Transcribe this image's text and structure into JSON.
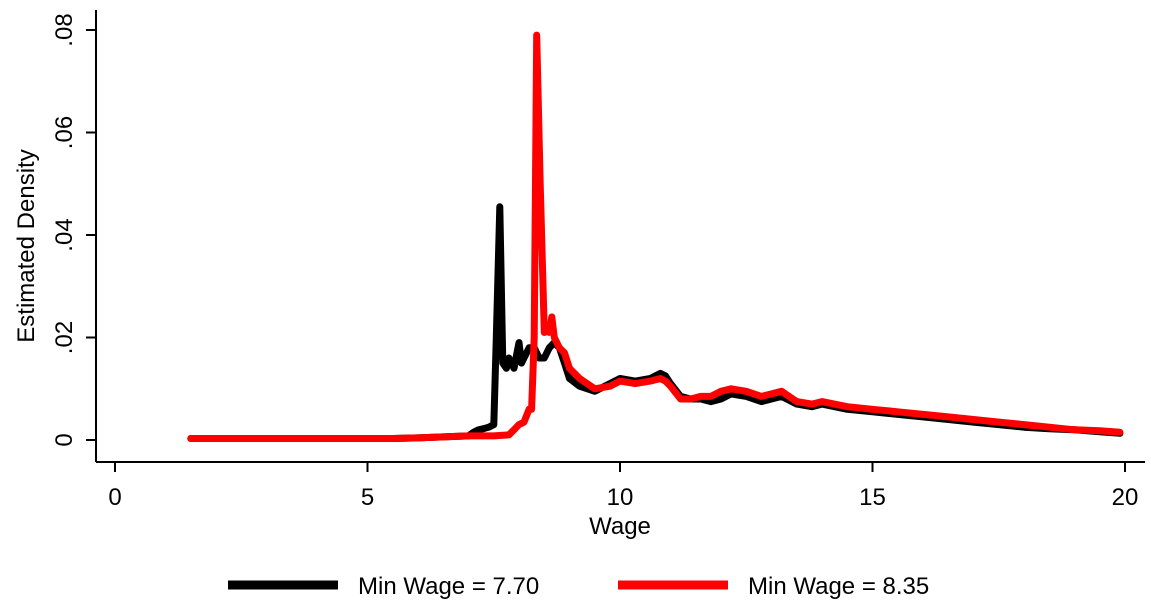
{
  "chart_data": {
    "type": "line",
    "title": "",
    "xlabel": "Wage",
    "ylabel": "Estimated Density",
    "xlim": [
      0,
      20
    ],
    "ylim": [
      0,
      0.08
    ],
    "x_ticks": [
      0,
      5,
      10,
      15,
      20
    ],
    "x_tick_labels": [
      "0",
      "5",
      "10",
      "15",
      "20"
    ],
    "y_ticks": [
      0,
      0.02,
      0.04,
      0.06,
      0.08
    ],
    "y_tick_labels": [
      "0",
      ".02",
      ".04",
      ".06",
      ".08"
    ],
    "grid": false,
    "legend_position": "bottom",
    "series": [
      {
        "name": "Min Wage = 7.70",
        "color": "#000000",
        "x": [
          1.5,
          2,
          3,
          4,
          5,
          5.5,
          6,
          6.5,
          7,
          7.1,
          7.2,
          7.3,
          7.4,
          7.5,
          7.55,
          7.62,
          7.68,
          7.75,
          7.8,
          7.9,
          8.0,
          8.05,
          8.1,
          8.2,
          8.3,
          8.4,
          8.5,
          8.6,
          8.7,
          8.8,
          8.9,
          9.0,
          9.2,
          9.5,
          9.8,
          10.0,
          10.3,
          10.6,
          10.8,
          10.9,
          11.0,
          11.2,
          11.4,
          11.6,
          11.8,
          12.0,
          12.2,
          12.5,
          12.8,
          13.0,
          13.2,
          13.5,
          13.8,
          14.0,
          14.5,
          15.0,
          15.5,
          16.0,
          16.5,
          17.0,
          17.5,
          18.0,
          18.5,
          19.0,
          19.5,
          19.9
        ],
        "y": [
          0.0003,
          0.0003,
          0.0003,
          0.0003,
          0.0003,
          0.0003,
          0.0004,
          0.0006,
          0.0008,
          0.0015,
          0.002,
          0.0022,
          0.0025,
          0.003,
          0.02,
          0.0455,
          0.015,
          0.014,
          0.016,
          0.014,
          0.019,
          0.015,
          0.016,
          0.018,
          0.018,
          0.016,
          0.016,
          0.018,
          0.019,
          0.018,
          0.015,
          0.012,
          0.0105,
          0.0095,
          0.011,
          0.012,
          0.0115,
          0.012,
          0.013,
          0.0125,
          0.011,
          0.0085,
          0.008,
          0.008,
          0.0075,
          0.008,
          0.009,
          0.0085,
          0.0075,
          0.008,
          0.0085,
          0.007,
          0.0065,
          0.007,
          0.006,
          0.0055,
          0.005,
          0.0045,
          0.004,
          0.0035,
          0.003,
          0.0025,
          0.0022,
          0.002,
          0.0016,
          0.0013
        ]
      },
      {
        "name": "Min Wage = 8.35",
        "color": "#ff0000",
        "x": [
          1.5,
          2,
          3,
          4,
          5,
          5.5,
          6,
          6.5,
          7,
          7.5,
          7.8,
          7.9,
          8.0,
          8.1,
          8.2,
          8.25,
          8.3,
          8.35,
          8.42,
          8.5,
          8.55,
          8.6,
          8.65,
          8.7,
          8.8,
          8.9,
          9.0,
          9.2,
          9.5,
          9.8,
          10.0,
          10.3,
          10.6,
          10.8,
          10.9,
          11.0,
          11.2,
          11.4,
          11.6,
          11.8,
          12.0,
          12.2,
          12.5,
          12.8,
          13.0,
          13.2,
          13.5,
          13.8,
          14.0,
          14.5,
          15.0,
          15.5,
          16.0,
          16.5,
          17.0,
          17.5,
          18.0,
          18.5,
          19.0,
          19.5,
          19.9
        ],
        "y": [
          0.0003,
          0.0003,
          0.0003,
          0.0003,
          0.0003,
          0.0003,
          0.0004,
          0.0006,
          0.0008,
          0.0008,
          0.001,
          0.002,
          0.003,
          0.0035,
          0.006,
          0.006,
          0.02,
          0.079,
          0.05,
          0.021,
          0.022,
          0.021,
          0.024,
          0.02,
          0.018,
          0.017,
          0.014,
          0.012,
          0.01,
          0.0105,
          0.0115,
          0.011,
          0.0115,
          0.012,
          0.0115,
          0.0105,
          0.008,
          0.008,
          0.0085,
          0.0085,
          0.0095,
          0.01,
          0.0095,
          0.0085,
          0.009,
          0.0095,
          0.0075,
          0.007,
          0.0075,
          0.0065,
          0.006,
          0.0055,
          0.005,
          0.0045,
          0.004,
          0.0035,
          0.003,
          0.0025,
          0.002,
          0.0018,
          0.0015
        ]
      }
    ]
  }
}
